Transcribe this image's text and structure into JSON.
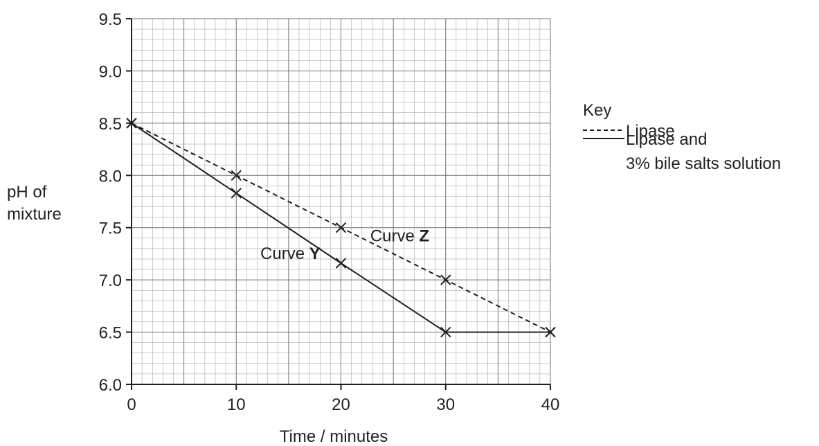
{
  "chart_data": {
    "type": "line",
    "xlabel": "Time / minutes",
    "ylabel": [
      "pH of",
      "mixture"
    ],
    "xlim": [
      0,
      40
    ],
    "ylim": [
      6.0,
      9.5
    ],
    "x_ticks": [
      "0",
      "10",
      "20",
      "30",
      "40"
    ],
    "y_ticks": [
      "6.0",
      "6.5",
      "7.0",
      "7.5",
      "8.0",
      "8.5",
      "9.0",
      "9.5"
    ],
    "grid": true,
    "legend": {
      "title": "Key",
      "placement": "right",
      "entries": [
        {
          "style": "dashed",
          "label": [
            "Lipase"
          ]
        },
        {
          "style": "solid",
          "label": [
            "Lipase and",
            "3% bile salts solution"
          ]
        }
      ]
    },
    "series": [
      {
        "name": "Lipase and 3% bile salts solution",
        "curve_label": {
          "prefix": "Curve ",
          "letter": "Y"
        },
        "style": "solid",
        "x": [
          0,
          10,
          20,
          30,
          40
        ],
        "y": [
          8.5,
          7.83,
          7.16,
          6.5,
          6.5
        ]
      },
      {
        "name": "Lipase",
        "curve_label": {
          "prefix": "Curve ",
          "letter": "Z"
        },
        "style": "dashed",
        "x": [
          0,
          10,
          20,
          30,
          40
        ],
        "y": [
          8.5,
          8.0,
          7.5,
          7.0,
          6.5
        ]
      }
    ],
    "colors": {
      "ink": "#231f20",
      "grid": "#9a9a9a"
    }
  }
}
